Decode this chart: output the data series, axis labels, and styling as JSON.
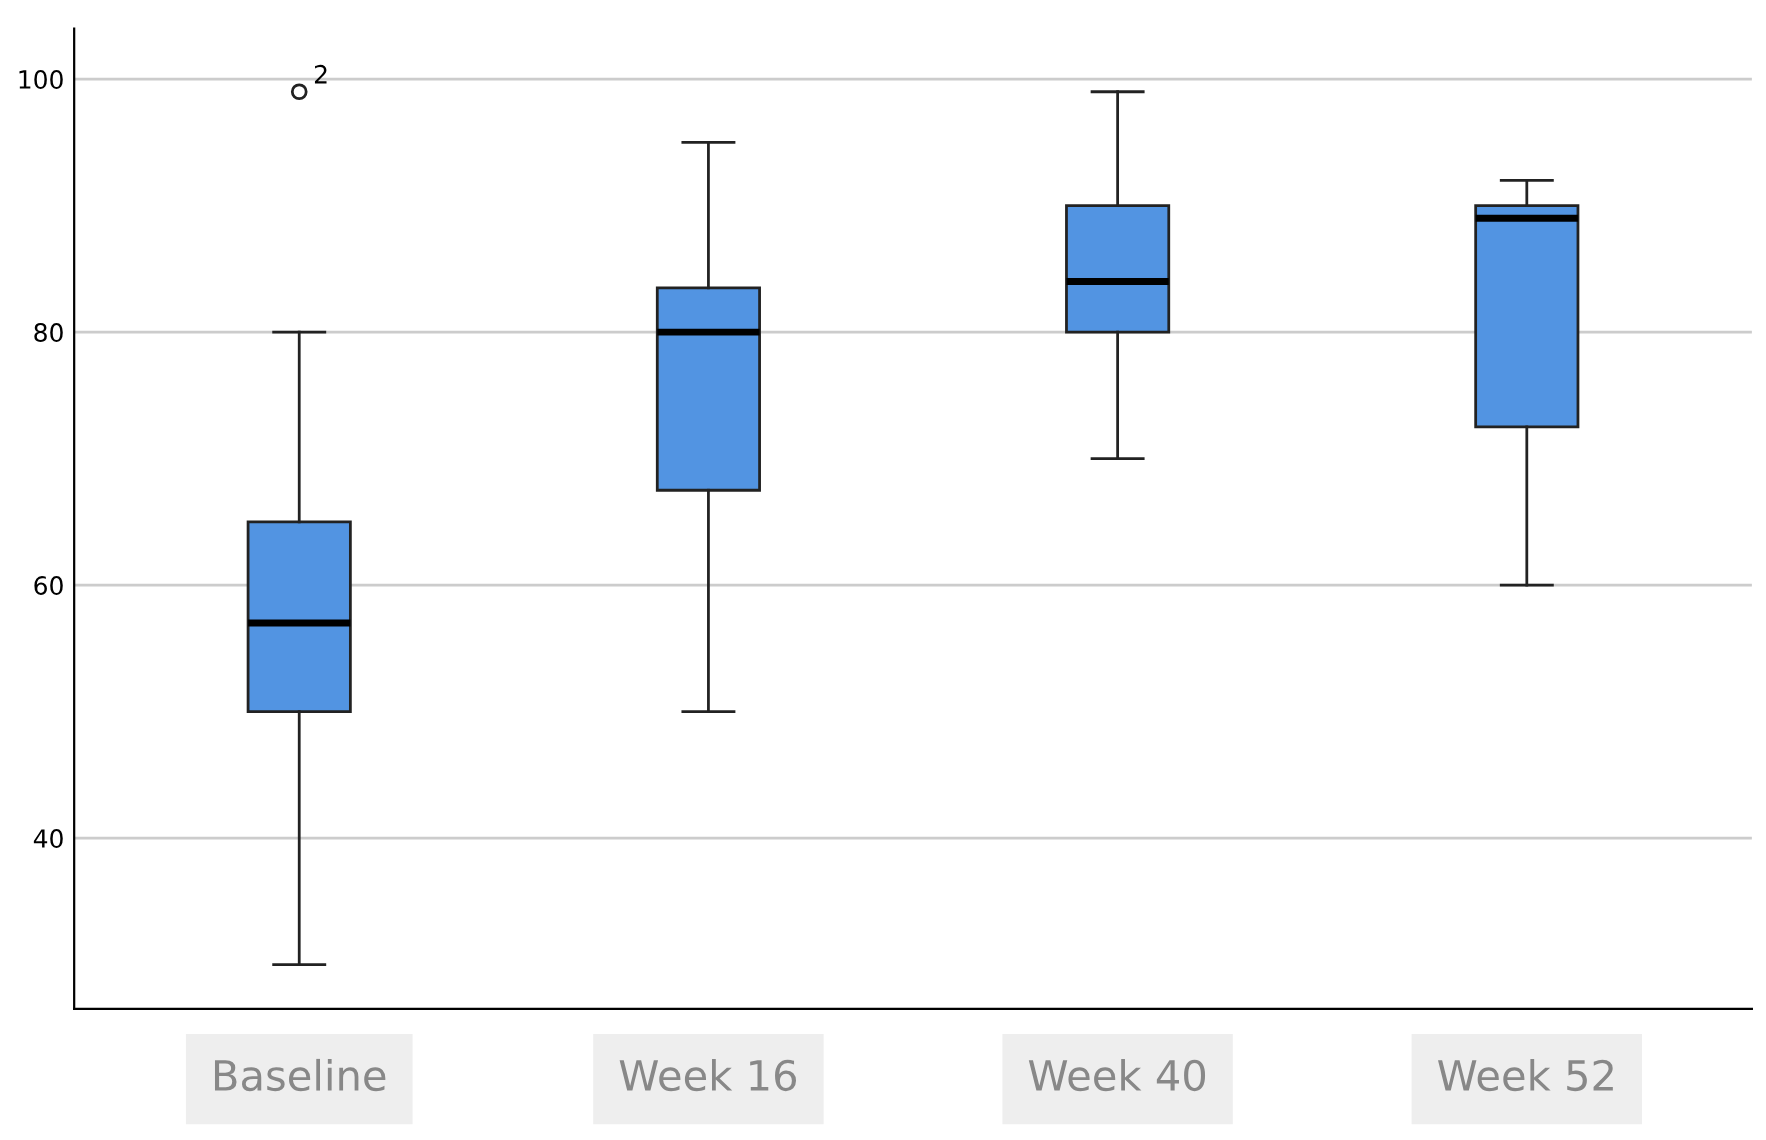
{
  "chart_data": {
    "type": "box",
    "categories": [
      "Baseline",
      "Week 16",
      "Week 40",
      "Week 52"
    ],
    "boxes": [
      {
        "low": 30,
        "q1": 50,
        "median": 57,
        "q3": 65,
        "high": 80,
        "outliers": [
          99
        ]
      },
      {
        "low": 50,
        "q1": 67.5,
        "median": 80,
        "q3": 83.5,
        "high": 95
      },
      {
        "low": 70,
        "q1": 80,
        "median": 84,
        "q3": 90,
        "high": 99
      },
      {
        "low": 60,
        "q1": 72.5,
        "median": 89,
        "q3": 90,
        "high": 92
      }
    ],
    "color": "#5294e2",
    "ylim": [
      26.5,
      104
    ],
    "yticks": [
      40,
      60,
      80,
      100
    ],
    "grid": "y",
    "annotations": [
      "2"
    ]
  }
}
